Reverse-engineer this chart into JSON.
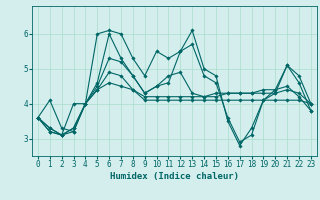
{
  "xlabel": "Humidex (Indice chaleur)",
  "ylabel": "",
  "bg_color": "#d4eeed",
  "grid_color": "#aaddcc",
  "line_color": "#006666",
  "hours": [
    0,
    1,
    2,
    3,
    4,
    5,
    6,
    7,
    8,
    9,
    10,
    11,
    12,
    13,
    14,
    15,
    16,
    17,
    18,
    19,
    20,
    21,
    22,
    23
  ],
  "series": [
    [
      3.6,
      4.1,
      3.3,
      3.2,
      4.0,
      6.0,
      6.1,
      6.0,
      5.3,
      4.8,
      5.5,
      5.3,
      5.5,
      6.1,
      5.0,
      4.8,
      3.5,
      2.8,
      3.3,
      4.1,
      4.4,
      5.1,
      4.8,
      4.0
    ],
    [
      3.6,
      3.2,
      3.1,
      4.0,
      4.0,
      4.6,
      6.0,
      5.3,
      4.8,
      4.3,
      4.5,
      4.8,
      4.9,
      4.3,
      4.2,
      4.2,
      4.3,
      4.3,
      4.3,
      4.4,
      4.4,
      4.5,
      4.2,
      3.8
    ],
    [
      3.6,
      3.3,
      3.1,
      3.3,
      4.0,
      4.4,
      4.9,
      4.8,
      4.4,
      4.1,
      4.1,
      4.1,
      4.1,
      4.1,
      4.1,
      4.1,
      4.1,
      4.1,
      4.1,
      4.1,
      4.1,
      4.1,
      4.1,
      4.0
    ],
    [
      3.6,
      3.3,
      3.1,
      3.3,
      4.0,
      4.4,
      4.6,
      4.5,
      4.4,
      4.2,
      4.2,
      4.2,
      4.2,
      4.2,
      4.2,
      4.3,
      4.3,
      4.3,
      4.3,
      4.3,
      4.3,
      4.4,
      4.3,
      4.0
    ],
    [
      3.6,
      3.2,
      3.1,
      3.2,
      4.0,
      4.5,
      5.3,
      5.2,
      4.8,
      4.3,
      4.5,
      4.6,
      5.5,
      5.7,
      4.8,
      4.6,
      3.6,
      2.9,
      3.1,
      4.1,
      4.3,
      5.1,
      4.6,
      3.8
    ]
  ],
  "ylim": [
    2.5,
    6.8
  ],
  "yticks": [
    3,
    4,
    5,
    6
  ],
  "marker": "D",
  "markersize": 1.8,
  "linewidth": 0.8,
  "tick_fontsize": 5.5,
  "xlabel_fontsize": 6.5
}
